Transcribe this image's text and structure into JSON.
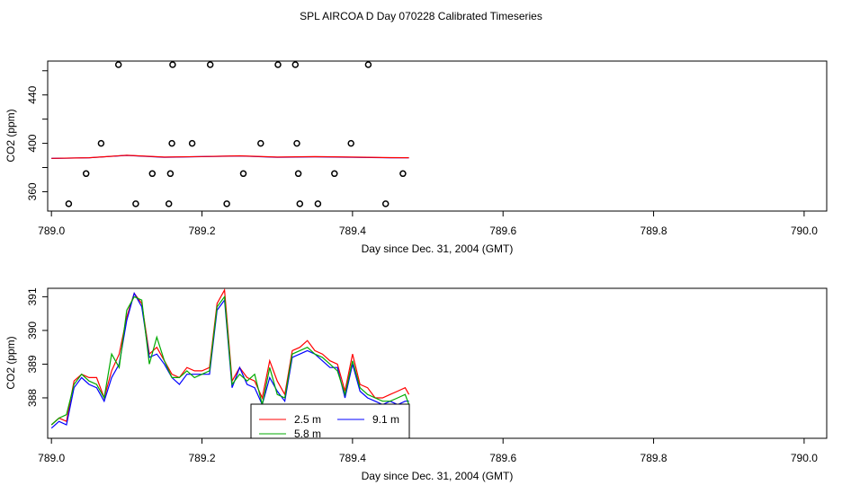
{
  "title": "SPL AIRCOA D  Day 070228  Calibrated Timeseries",
  "chart_data": [
    {
      "type": "scatter",
      "id": "top-panel",
      "xlabel": "Day since Dec. 31, 2004 (GMT)",
      "ylabel": "CO2 (ppm)",
      "xlim": [
        788.995,
        790.03
      ],
      "ylim": [
        344,
        468
      ],
      "xticks": [
        789.0,
        789.2,
        789.4,
        789.6,
        789.8,
        790.0
      ],
      "xtick_labels": [
        "789.0",
        "789.2",
        "789.4",
        "789.6",
        "789.8",
        "790.0"
      ],
      "yticks": [
        360,
        400,
        440
      ],
      "ytick_labels": [
        "360",
        "400",
        "440"
      ],
      "extra_yticks": [
        380,
        420,
        460
      ],
      "points_x": [
        789.023,
        789.046,
        789.066,
        789.089,
        789.112,
        789.134,
        789.156,
        789.158,
        789.16,
        789.161,
        789.187,
        789.211,
        789.233,
        789.255,
        789.278,
        789.301,
        789.324,
        789.326,
        789.328,
        789.33,
        789.354,
        789.376,
        789.398,
        789.421,
        789.444,
        789.467
      ],
      "points_y": [
        350,
        375,
        400,
        465,
        350,
        375,
        350,
        375,
        400,
        465,
        400,
        465,
        350,
        375,
        400,
        465,
        465,
        400,
        375,
        350,
        350,
        375,
        400,
        465,
        350,
        375
      ],
      "series": [
        {
          "name": "blue line",
          "color": "#0000ff",
          "x": [
            789.0,
            789.05,
            789.1,
            789.15,
            789.2,
            789.25,
            789.3,
            789.35,
            789.4,
            789.45,
            789.475
          ],
          "values": [
            387.5,
            388.0,
            390.0,
            388.5,
            389.0,
            389.5,
            388.5,
            388.8,
            388.5,
            388.0,
            388.0
          ]
        },
        {
          "name": "red line",
          "color": "#ff0000",
          "x": [
            789.0,
            789.05,
            789.1,
            789.15,
            789.2,
            789.25,
            789.3,
            789.35,
            789.4,
            789.45,
            789.475
          ],
          "values": [
            387.6,
            388.1,
            390.1,
            388.6,
            389.1,
            389.7,
            388.6,
            389.0,
            388.6,
            388.2,
            388.1
          ]
        }
      ]
    },
    {
      "type": "line",
      "id": "bottom-panel",
      "xlabel": "Day since Dec. 31, 2004 (GMT)",
      "ylabel": "CO2 (ppm)",
      "xlim": [
        788.995,
        790.03
      ],
      "ylim": [
        386.8,
        391.25
      ],
      "xticks": [
        789.0,
        789.2,
        789.4,
        789.6,
        789.8,
        790.0
      ],
      "xtick_labels": [
        "789.0",
        "789.2",
        "789.4",
        "789.6",
        "789.8",
        "790.0"
      ],
      "yticks": [
        388,
        389,
        390,
        391
      ],
      "ytick_labels": [
        "388",
        "389",
        "390",
        "391"
      ],
      "legend_position": "bottom-center",
      "legend": [
        "2.5 m",
        "9.1 m",
        "5.8 m"
      ],
      "series": [
        {
          "name": "2.5 m",
          "color": "#ff0000",
          "x": [
            789.0,
            789.01,
            789.02,
            789.03,
            789.04,
            789.05,
            789.06,
            789.07,
            789.08,
            789.09,
            789.1,
            789.11,
            789.12,
            789.13,
            789.14,
            789.15,
            789.16,
            789.17,
            789.18,
            789.19,
            789.2,
            789.21,
            789.22,
            789.23,
            789.24,
            789.25,
            789.26,
            789.27,
            789.28,
            789.29,
            789.3,
            789.31,
            789.32,
            789.33,
            789.34,
            789.35,
            789.36,
            789.37,
            789.38,
            789.39,
            789.4,
            789.41,
            789.42,
            789.43,
            789.44,
            789.45,
            789.46,
            789.47,
            789.475
          ],
          "values": [
            387.2,
            387.4,
            387.3,
            388.5,
            388.7,
            388.6,
            388.6,
            388.0,
            388.8,
            389.3,
            390.4,
            391.1,
            390.8,
            389.3,
            389.5,
            389.1,
            388.7,
            388.6,
            388.9,
            388.8,
            388.8,
            388.9,
            390.8,
            391.2,
            388.5,
            388.9,
            388.6,
            388.5,
            388.0,
            389.1,
            388.5,
            388.1,
            389.4,
            389.5,
            389.7,
            389.4,
            389.3,
            389.1,
            389.0,
            388.2,
            389.3,
            388.4,
            388.3,
            388.0,
            388.0,
            388.1,
            388.2,
            388.3,
            388.1
          ]
        },
        {
          "name": "9.1 m",
          "color": "#0000ff",
          "x": [
            789.0,
            789.01,
            789.02,
            789.03,
            789.04,
            789.05,
            789.06,
            789.07,
            789.08,
            789.09,
            789.1,
            789.11,
            789.12,
            789.13,
            789.14,
            789.15,
            789.16,
            789.17,
            789.18,
            789.19,
            789.2,
            789.21,
            789.22,
            789.23,
            789.24,
            789.25,
            789.26,
            789.27,
            789.28,
            789.29,
            789.3,
            789.31,
            789.32,
            789.33,
            789.34,
            789.35,
            789.36,
            789.37,
            789.38,
            789.39,
            789.4,
            789.41,
            789.42,
            789.43,
            789.44,
            789.45,
            789.46,
            789.47,
            789.475
          ],
          "values": [
            387.1,
            387.3,
            387.2,
            388.3,
            388.6,
            388.4,
            388.3,
            387.9,
            388.6,
            389.0,
            390.3,
            391.1,
            390.7,
            389.2,
            389.3,
            389.0,
            388.6,
            388.4,
            388.7,
            388.7,
            388.7,
            388.7,
            390.6,
            390.9,
            388.3,
            388.9,
            388.4,
            388.3,
            387.8,
            388.6,
            388.2,
            387.9,
            389.2,
            389.3,
            389.4,
            389.3,
            389.1,
            388.9,
            388.9,
            388.0,
            389.0,
            388.2,
            388.0,
            387.9,
            387.8,
            387.9,
            387.8,
            387.9,
            387.9
          ]
        },
        {
          "name": "5.8 m",
          "color": "#00aa00",
          "x": [
            789.0,
            789.01,
            789.02,
            789.03,
            789.04,
            789.05,
            789.06,
            789.07,
            789.08,
            789.09,
            789.1,
            789.11,
            789.12,
            789.13,
            789.14,
            789.15,
            789.16,
            789.17,
            789.18,
            789.19,
            789.2,
            789.21,
            789.22,
            789.23,
            789.24,
            789.25,
            789.26,
            789.27,
            789.28,
            789.29,
            789.3,
            789.31,
            789.32,
            789.33,
            789.34,
            789.35,
            789.36,
            789.37,
            789.38,
            789.39,
            789.4,
            789.41,
            789.42,
            789.43,
            789.44,
            789.45,
            789.46,
            789.47,
            789.475
          ],
          "values": [
            387.2,
            387.4,
            387.5,
            388.4,
            388.7,
            388.5,
            388.4,
            388.0,
            389.3,
            388.9,
            390.6,
            391.0,
            390.9,
            389.0,
            389.8,
            389.1,
            388.6,
            388.6,
            388.8,
            388.6,
            388.7,
            388.8,
            390.7,
            391.0,
            388.4,
            388.7,
            388.5,
            388.7,
            387.8,
            388.9,
            388.1,
            388.0,
            389.3,
            389.4,
            389.5,
            389.3,
            389.2,
            389.0,
            388.8,
            388.1,
            389.1,
            388.3,
            388.1,
            388.0,
            387.9,
            387.9,
            388.0,
            388.1,
            387.8
          ]
        }
      ]
    }
  ]
}
